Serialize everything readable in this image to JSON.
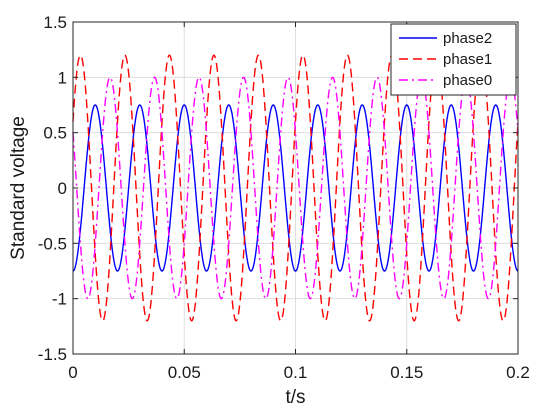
{
  "chart_data": {
    "type": "line",
    "title": "",
    "xlabel": "t/s",
    "ylabel": "Standard voltage",
    "xlim": [
      0,
      0.2
    ],
    "ylim": [
      -1.5,
      1.5
    ],
    "xticks": [
      0,
      0.05,
      0.1,
      0.15,
      0.2
    ],
    "xtick_labels": [
      "0",
      "0.05",
      "0.1",
      "0.15",
      "0.2"
    ],
    "yticks": [
      -1.5,
      -1,
      -0.5,
      0,
      0.5,
      1,
      1.5
    ],
    "ytick_labels": [
      "-1.5",
      "-1",
      "-0.5",
      "0",
      "0.5",
      "1",
      "1.5"
    ],
    "grid": true,
    "legend_position": "top-right",
    "series": [
      {
        "name": "phase2",
        "color": "#0000ff",
        "dash": "solid",
        "amplitude": 0.75,
        "frequency_hz": 50,
        "phase_deg": -90
      },
      {
        "name": "phase1",
        "color": "#ff0000",
        "dash": "dashed",
        "amplitude": 1.2,
        "frequency_hz": 50,
        "phase_deg": 30
      },
      {
        "name": "phase0",
        "color": "#ff00ff",
        "dash": "dashdot",
        "amplitude": 1.0,
        "frequency_hz": 50,
        "phase_deg": 150
      }
    ]
  }
}
